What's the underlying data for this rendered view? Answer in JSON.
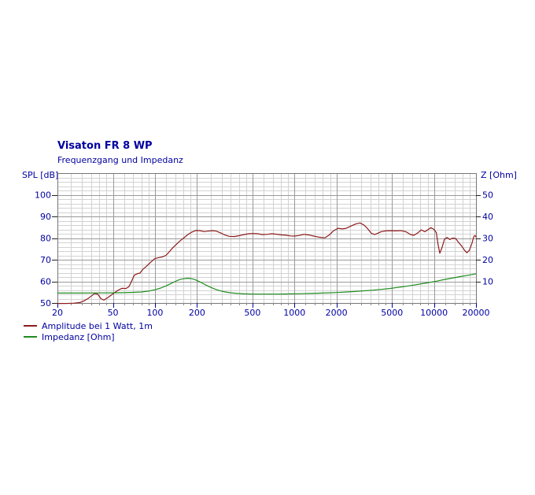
{
  "title": "Visaton FR 8 WP",
  "subtitle": "Frequenzgang und Impedanz",
  "left_axis_title": "SPL [dB]",
  "right_axis_title": "Z [Ohm]",
  "legend": [
    {
      "label": "Amplitude bei 1 Watt, 1m",
      "color": "#8e1b1b"
    },
    {
      "label": "Impedanz [Ohm]",
      "color": "#1e8c1e"
    }
  ],
  "colors": {
    "text_accent": "#0000a0",
    "amplitude_line": "#8e1b1b",
    "impedance_line": "#1e8c1e",
    "grid_minor": "#d2d2d2",
    "grid_major": "#9a9a9a",
    "plot_border": "#777777",
    "tick_major_bottom": "#0000a0",
    "tick_minor_bottom": "#888888",
    "tick_side": "#222222"
  },
  "chart_data": {
    "type": "line",
    "x_scale": "log",
    "x_range": [
      20,
      20000
    ],
    "x_ticks": [
      20,
      50,
      100,
      200,
      500,
      1000,
      2000,
      5000,
      10000,
      20000
    ],
    "y_left": {
      "label": "SPL [dB]",
      "range": [
        50,
        110
      ],
      "ticks": [
        50,
        60,
        70,
        80,
        90,
        100
      ],
      "minor_step": 2
    },
    "y_right": {
      "label": "Z [Ohm]",
      "range": [
        0,
        60
      ],
      "ticks": [
        10,
        20,
        30,
        40,
        50
      ]
    },
    "grid": true,
    "legend_position": "bottom-left",
    "series": [
      {
        "name": "Amplitude bei 1 Watt, 1m",
        "axis": "left",
        "unit": "dB",
        "color": "#8e1b1b",
        "points": [
          [
            20,
            49.8
          ],
          [
            23,
            49.8
          ],
          [
            26,
            49.9
          ],
          [
            29,
            50.2
          ],
          [
            31,
            51.0
          ],
          [
            33,
            52.0
          ],
          [
            35,
            53.2
          ],
          [
            37,
            54.4
          ],
          [
            39,
            54.0
          ],
          [
            41,
            52.0
          ],
          [
            43,
            51.3
          ],
          [
            46,
            52.5
          ],
          [
            50,
            54.2
          ],
          [
            54,
            55.8
          ],
          [
            58,
            56.8
          ],
          [
            62,
            56.7
          ],
          [
            65,
            57.5
          ],
          [
            68,
            60.0
          ],
          [
            71,
            62.8
          ],
          [
            75,
            63.6
          ],
          [
            78,
            63.8
          ],
          [
            82,
            65.6
          ],
          [
            87,
            67.0
          ],
          [
            93,
            68.8
          ],
          [
            100,
            70.6
          ],
          [
            107,
            71.0
          ],
          [
            113,
            71.3
          ],
          [
            120,
            72.0
          ],
          [
            127,
            73.8
          ],
          [
            135,
            75.7
          ],
          [
            143,
            77.2
          ],
          [
            152,
            78.8
          ],
          [
            162,
            80.2
          ],
          [
            172,
            81.6
          ],
          [
            183,
            82.7
          ],
          [
            196,
            83.5
          ],
          [
            210,
            83.4
          ],
          [
            225,
            83.0
          ],
          [
            240,
            83.2
          ],
          [
            258,
            83.4
          ],
          [
            275,
            83.2
          ],
          [
            295,
            82.4
          ],
          [
            315,
            81.5
          ],
          [
            340,
            80.8
          ],
          [
            370,
            80.7
          ],
          [
            400,
            81.1
          ],
          [
            435,
            81.6
          ],
          [
            470,
            82.0
          ],
          [
            505,
            82.1
          ],
          [
            545,
            82.0
          ],
          [
            590,
            81.6
          ],
          [
            635,
            81.7
          ],
          [
            690,
            82.0
          ],
          [
            740,
            81.8
          ],
          [
            800,
            81.5
          ],
          [
            870,
            81.3
          ],
          [
            940,
            81.0
          ],
          [
            1000,
            80.9
          ],
          [
            1080,
            81.2
          ],
          [
            1170,
            81.7
          ],
          [
            1270,
            81.4
          ],
          [
            1380,
            80.9
          ],
          [
            1500,
            80.4
          ],
          [
            1650,
            80.1
          ],
          [
            1780,
            81.5
          ],
          [
            1900,
            83.3
          ],
          [
            2050,
            84.5
          ],
          [
            2200,
            84.2
          ],
          [
            2350,
            84.5
          ],
          [
            2550,
            85.6
          ],
          [
            2750,
            86.5
          ],
          [
            2950,
            87.0
          ],
          [
            3150,
            86.0
          ],
          [
            3350,
            84.3
          ],
          [
            3550,
            82.2
          ],
          [
            3750,
            81.6
          ],
          [
            3950,
            82.2
          ],
          [
            4200,
            83.0
          ],
          [
            4500,
            83.3
          ],
          [
            4900,
            83.4
          ],
          [
            5300,
            83.3
          ],
          [
            5800,
            83.4
          ],
          [
            6300,
            82.9
          ],
          [
            6800,
            81.6
          ],
          [
            7200,
            81.3
          ],
          [
            7700,
            82.5
          ],
          [
            8100,
            83.8
          ],
          [
            8600,
            82.9
          ],
          [
            9100,
            84.0
          ],
          [
            9500,
            84.8
          ],
          [
            10000,
            84.0
          ],
          [
            10400,
            82.5
          ],
          [
            10700,
            77.0
          ],
          [
            11000,
            73.0
          ],
          [
            11400,
            75.5
          ],
          [
            11900,
            79.5
          ],
          [
            12400,
            80.3
          ],
          [
            13000,
            79.3
          ],
          [
            13600,
            80.0
          ],
          [
            14300,
            79.8
          ],
          [
            15000,
            78.0
          ],
          [
            15800,
            76.3
          ],
          [
            16600,
            74.3
          ],
          [
            17200,
            73.2
          ],
          [
            17900,
            74.3
          ],
          [
            18700,
            77.5
          ],
          [
            19300,
            80.8
          ],
          [
            19700,
            81.2
          ],
          [
            20000,
            80.4
          ]
        ]
      },
      {
        "name": "Impedanz [Ohm]",
        "axis": "right",
        "unit": "Ohm",
        "color": "#1e8c1e",
        "points": [
          [
            20,
            4.6
          ],
          [
            30,
            4.6
          ],
          [
            40,
            4.65
          ],
          [
            50,
            4.7
          ],
          [
            60,
            4.75
          ],
          [
            70,
            4.9
          ],
          [
            80,
            5.1
          ],
          [
            90,
            5.5
          ],
          [
            100,
            6.1
          ],
          [
            110,
            6.9
          ],
          [
            120,
            7.9
          ],
          [
            130,
            9.0
          ],
          [
            140,
            10.0
          ],
          [
            150,
            10.8
          ],
          [
            160,
            11.2
          ],
          [
            170,
            11.4
          ],
          [
            180,
            11.3
          ],
          [
            190,
            11.0
          ],
          [
            200,
            10.4
          ],
          [
            215,
            9.4
          ],
          [
            230,
            8.4
          ],
          [
            250,
            7.3
          ],
          [
            270,
            6.4
          ],
          [
            290,
            5.7
          ],
          [
            320,
            5.1
          ],
          [
            350,
            4.7
          ],
          [
            390,
            4.4
          ],
          [
            440,
            4.2
          ],
          [
            500,
            4.1
          ],
          [
            570,
            4.1
          ],
          [
            650,
            4.1
          ],
          [
            750,
            4.1
          ],
          [
            850,
            4.15
          ],
          [
            950,
            4.2
          ],
          [
            1100,
            4.3
          ],
          [
            1300,
            4.4
          ],
          [
            1500,
            4.55
          ],
          [
            1750,
            4.7
          ],
          [
            2000,
            4.85
          ],
          [
            2300,
            5.05
          ],
          [
            2700,
            5.3
          ],
          [
            3100,
            5.6
          ],
          [
            3600,
            5.9
          ],
          [
            4200,
            6.3
          ],
          [
            4800,
            6.7
          ],
          [
            5500,
            7.2
          ],
          [
            6300,
            7.7
          ],
          [
            7200,
            8.3
          ],
          [
            8200,
            8.9
          ],
          [
            9300,
            9.5
          ],
          [
            10500,
            10.1
          ],
          [
            12000,
            10.9
          ],
          [
            13500,
            11.5
          ],
          [
            15500,
            12.2
          ],
          [
            17500,
            12.8
          ],
          [
            19000,
            13.2
          ],
          [
            20000,
            13.5
          ]
        ]
      }
    ]
  }
}
